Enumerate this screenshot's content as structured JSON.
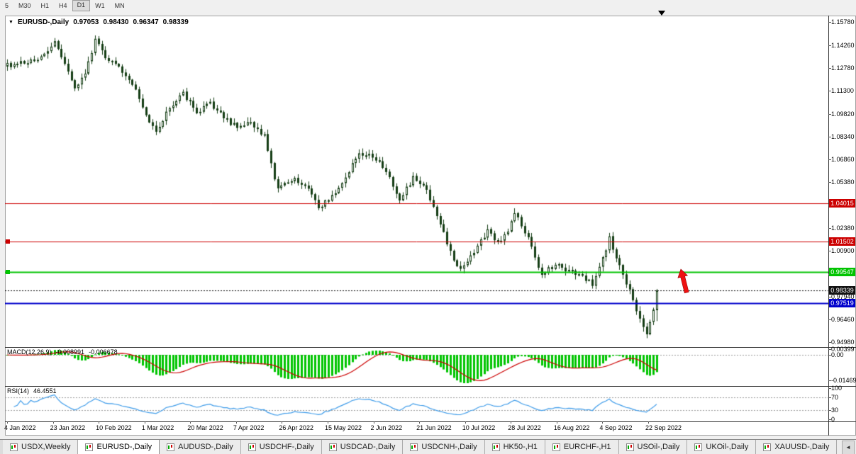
{
  "icons": {
    "symbol_dropdown": "▼",
    "tab_scroll_left": "◄"
  },
  "toolbar": {
    "timeframes": [
      "5",
      "M30",
      "H1",
      "H4",
      "D1",
      "W1",
      "MN"
    ],
    "active": "D1"
  },
  "chart": {
    "symbol_label": "EURUSD-,Daily",
    "ohlc": {
      "open": "0.97053",
      "high": "0.98430",
      "low": "0.96347",
      "close": "0.98339"
    },
    "price_axis": [
      "1.15780",
      "1.14260",
      "1.12780",
      "1.11300",
      "1.09820",
      "1.08340",
      "1.06860",
      "1.05380",
      "1.03900",
      "1.02380",
      "1.00900",
      "0.99420",
      "0.97940",
      "0.96460",
      "0.94980"
    ],
    "date_axis": [
      "4 Jan 2022",
      "23 Jan 2022",
      "10 Feb 2022",
      "1 Mar 2022",
      "20 Mar 2022",
      "7 Apr 2022",
      "26 Apr 2022",
      "15 May 2022",
      "2 Jun 2022",
      "21 Jun 2022",
      "10 Jul 2022",
      "28 Jul 2022",
      "16 Aug 2022",
      "4 Sep 2022",
      "22 Sep 2022"
    ],
    "price_lines": [
      {
        "value": "1.04015",
        "price": 1.04015,
        "color": "#cc0000",
        "width": 1,
        "left_marker": false
      },
      {
        "value": "1.01502",
        "price": 1.01502,
        "color": "#cc0000",
        "width": 1,
        "left_marker": true
      },
      {
        "value": "0.99547",
        "price": 0.99547,
        "color": "#00c400",
        "width": 2,
        "left_marker": true
      },
      {
        "value": "0.97519",
        "price": 0.97519,
        "color": "#0000cc",
        "width": 2,
        "left_marker": false
      }
    ],
    "current_price": {
      "value": "0.98339",
      "price": 0.98339,
      "color": "#000000"
    }
  },
  "indicators": {
    "macd": {
      "label": "MACD(12,26,9)",
      "main_value": "-0.008991",
      "signal_value": "-0.006678",
      "axis": [
        "0.00399",
        "0.00",
        "-0.01469"
      ],
      "hist_color": "#00c400",
      "signal_color": "#cc0000"
    },
    "rsi": {
      "label": "RSI(14)",
      "value": "46.4551",
      "axis": [
        "100",
        "70",
        "30",
        "0"
      ],
      "levels": [
        70,
        30
      ],
      "line_color": "#3d9be9"
    }
  },
  "tabs": {
    "items": [
      "USDX,Weekly",
      "EURUSD-,Daily",
      "AUDUSD-,Daily",
      "USDCHF-,Daily",
      "USDCAD-,Daily",
      "USDCNH-,Daily",
      "HK50-,H1",
      "EURCHF-,H1",
      "USOil-,Daily",
      "UKOil-,Daily",
      "XAUUSD-,Daily",
      "UKOil-,Daily"
    ],
    "active_index": 1
  },
  "chart_data": {
    "type": "candlestick",
    "symbol": "EURUSD-",
    "timeframe": "Daily",
    "bar_count": 193,
    "y_axis": {
      "min": 0.9498,
      "max": 1.1578,
      "tick_labels": [
        1.1578,
        1.1426,
        1.1278,
        1.113,
        1.0982,
        1.0834,
        1.0686,
        1.0538,
        1.039,
        1.0238,
        1.009,
        0.9942,
        0.9794,
        0.9646,
        0.9498
      ]
    },
    "x_axis": {
      "tick_labels": [
        "4 Jan 2022",
        "23 Jan 2022",
        "10 Feb 2022",
        "1 Mar 2022",
        "20 Mar 2022",
        "7 Apr 2022",
        "26 Apr 2022",
        "15 May 2022",
        "2 Jun 2022",
        "21 Jun 2022",
        "10 Jul 2022",
        "28 Jul 2022",
        "16 Aug 2022",
        "4 Sep 2022",
        "22 Sep 2022"
      ]
    },
    "price_path_anchors": [
      [
        0,
        1.1295
      ],
      [
        4,
        1.132
      ],
      [
        8,
        1.133
      ],
      [
        12,
        1.1405
      ],
      [
        14,
        1.1452
      ],
      [
        17,
        1.131
      ],
      [
        20,
        1.114
      ],
      [
        23,
        1.123
      ],
      [
        26,
        1.1462
      ],
      [
        29,
        1.135
      ],
      [
        33,
        1.129
      ],
      [
        37,
        1.118
      ],
      [
        41,
        1.096
      ],
      [
        44,
        1.0855
      ],
      [
        47,
        1.098
      ],
      [
        50,
        1.106
      ],
      [
        52,
        1.112
      ],
      [
        56,
        1.0985
      ],
      [
        60,
        1.1055
      ],
      [
        64,
        1.096
      ],
      [
        68,
        1.089
      ],
      [
        72,
        1.093
      ],
      [
        76,
        1.084
      ],
      [
        79,
        1.056
      ],
      [
        80,
        1.05
      ],
      [
        84,
        1.0555
      ],
      [
        88,
        1.0525
      ],
      [
        92,
        1.037
      ],
      [
        96,
        1.0445
      ],
      [
        100,
        1.057
      ],
      [
        104,
        1.0735
      ],
      [
        108,
        1.07
      ],
      [
        112,
        1.062
      ],
      [
        116,
        1.043
      ],
      [
        120,
        1.056
      ],
      [
        124,
        1.049
      ],
      [
        128,
        1.026
      ],
      [
        131,
        1.008
      ],
      [
        134,
        0.9965
      ],
      [
        138,
        1.009
      ],
      [
        142,
        1.0225
      ],
      [
        145,
        1.015
      ],
      [
        148,
        1.02
      ],
      [
        150,
        1.034
      ],
      [
        154,
        1.017
      ],
      [
        158,
        0.9935
      ],
      [
        162,
        1.0005
      ],
      [
        166,
        0.996
      ],
      [
        170,
        0.993
      ],
      [
        173,
        0.988
      ],
      [
        176,
        1.004
      ],
      [
        178,
        1.017
      ],
      [
        181,
        0.999
      ],
      [
        184,
        0.983
      ],
      [
        186,
        0.97
      ],
      [
        188,
        0.96
      ],
      [
        189,
        0.9565
      ],
      [
        190,
        0.964
      ],
      [
        191,
        0.97
      ],
      [
        192,
        0.98339
      ]
    ],
    "last_bar": {
      "open": 0.97053,
      "high": 0.9843,
      "low": 0.96347,
      "close": 0.98339
    },
    "horizontal_lines": [
      {
        "price": 1.04015,
        "color": "#cc0000",
        "style": "solid",
        "width": 1
      },
      {
        "price": 1.01502,
        "color": "#cc0000",
        "style": "solid",
        "width": 1
      },
      {
        "price": 0.99547,
        "color": "#00c400",
        "style": "solid",
        "width": 2
      },
      {
        "price": 0.97519,
        "color": "#0000cc",
        "style": "solid",
        "width": 2
      }
    ],
    "current_price_line": {
      "price": 0.98339,
      "color": "#000000",
      "style": "dashed"
    },
    "annotations": [
      {
        "type": "up-arrow",
        "bar_index": 198,
        "price": 0.984,
        "color": "#ee1111"
      }
    ],
    "colors": {
      "up_fill": "#ffffff",
      "down_fill": "#143d14",
      "outline": "#143d14",
      "background": "#ffffff"
    },
    "indicators": [
      {
        "name": "MACD",
        "params": [
          12,
          26,
          9
        ],
        "last_main": -0.008991,
        "last_signal": -0.006678,
        "axis_labels": [
          0.00399,
          0,
          -0.01469
        ]
      },
      {
        "name": "RSI",
        "params": [
          14
        ],
        "last_value": 46.4551,
        "levels": [
          70,
          30
        ],
        "axis_labels": [
          100,
          70,
          30,
          0
        ]
      }
    ]
  }
}
